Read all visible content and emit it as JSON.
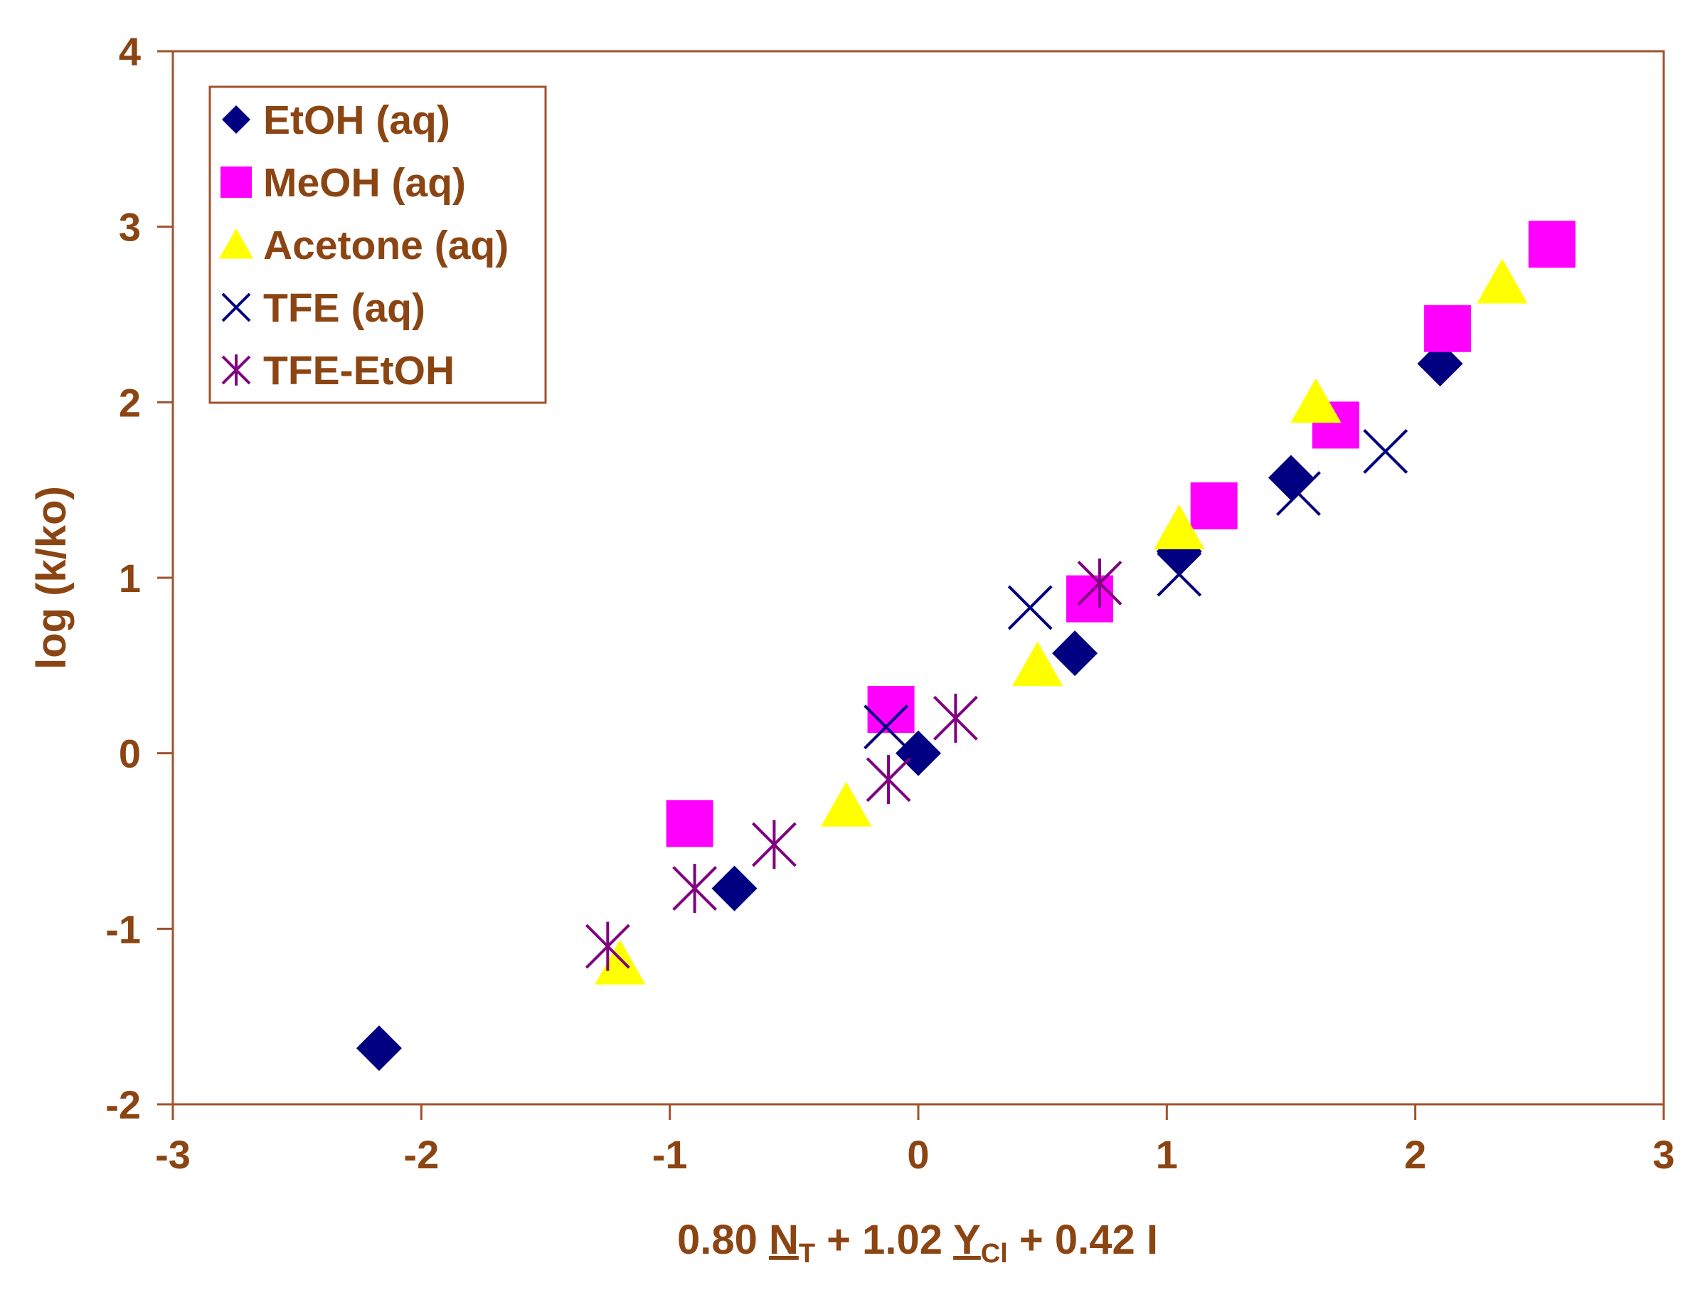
{
  "colors": {
    "axis": "#a0522d",
    "text": "#8b4513",
    "etoh": "#000080",
    "meoh": "#ff00ff",
    "acetone": "#ffff00",
    "tfe": "#000080",
    "tfe_etoh": "#800080"
  },
  "chart_data": {
    "type": "scatter",
    "xlabel": {
      "pre": "0.80 ",
      "n": "N",
      "n_sub": "T",
      "mid": " + 1.02 ",
      "y": "Y",
      "y_sub": "Cl",
      "post": " + 0.42 I"
    },
    "ylabel": "log (k/ko)",
    "xlim": [
      -3,
      3
    ],
    "ylim": [
      -2,
      4
    ],
    "xticks": [
      -3,
      -2,
      -1,
      0,
      1,
      2,
      3
    ],
    "yticks": [
      -2,
      -1,
      0,
      1,
      2,
      3,
      4
    ],
    "legend_position": "top-left",
    "series": [
      {
        "name": "EtOH (aq)",
        "marker": "diamond",
        "color": "#000080",
        "points": [
          [
            -2.17,
            -1.68
          ],
          [
            -0.74,
            -0.77
          ],
          [
            0.0,
            0.0
          ],
          [
            0.63,
            0.57
          ],
          [
            1.05,
            1.15
          ],
          [
            1.5,
            1.57
          ],
          [
            2.1,
            2.22
          ]
        ]
      },
      {
        "name": "MeOH (aq)",
        "marker": "square",
        "color": "#ff00ff",
        "points": [
          [
            -0.92,
            -0.4
          ],
          [
            -0.11,
            0.25
          ],
          [
            0.69,
            0.88
          ],
          [
            1.19,
            1.41
          ],
          [
            1.68,
            1.87
          ],
          [
            2.13,
            2.42
          ],
          [
            2.55,
            2.9
          ]
        ]
      },
      {
        "name": "Acetone (aq)",
        "marker": "triangle",
        "color": "#ffff00",
        "points": [
          [
            -1.2,
            -1.2
          ],
          [
            -0.29,
            -0.3
          ],
          [
            0.48,
            0.5
          ],
          [
            1.05,
            1.28
          ],
          [
            1.6,
            2.0
          ],
          [
            2.35,
            2.68
          ]
        ]
      },
      {
        "name": "TFE (aq)",
        "marker": "x",
        "color": "#000080",
        "points": [
          [
            -0.13,
            0.15
          ],
          [
            0.45,
            0.83
          ],
          [
            1.05,
            1.02
          ],
          [
            1.53,
            1.48
          ],
          [
            1.88,
            1.72
          ]
        ]
      },
      {
        "name": "TFE-EtOH",
        "marker": "asterisk",
        "color": "#800080",
        "points": [
          [
            -1.25,
            -1.1
          ],
          [
            -0.9,
            -0.77
          ],
          [
            -0.58,
            -0.52
          ],
          [
            -0.12,
            -0.15
          ],
          [
            0.15,
            0.2
          ],
          [
            0.73,
            0.97
          ]
        ]
      }
    ]
  }
}
